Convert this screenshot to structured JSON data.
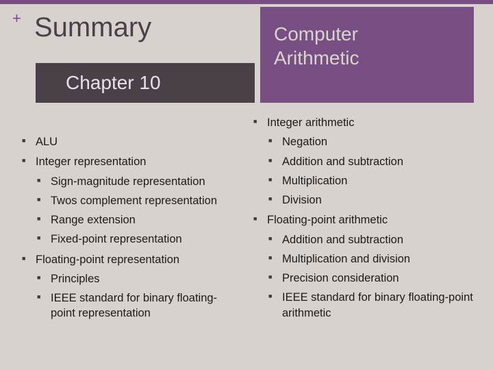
{
  "colors": {
    "band": "#774f82",
    "plus": "#774f82",
    "title": "#4a4048",
    "right_box_bg": "#774f82",
    "right_box_text": "#dcd3cf",
    "chapter_bg": "#4a4048",
    "chapter_text": "#e8e0ec",
    "bullet": "#3a3a3a",
    "body_bg": "#d8d2ce",
    "text": "#1a1a1a"
  },
  "plus_symbol": "+",
  "summary_title": "Summary",
  "right_box_line1": "Computer",
  "right_box_line2": "Arithmetic",
  "chapter_label": "Chapter 10",
  "left": {
    "items": [
      {
        "label": "ALU"
      },
      {
        "label": "Integer representation",
        "children": [
          "Sign-magnitude representation",
          "Twos complement representation",
          "Range extension",
          "Fixed-point representation"
        ]
      },
      {
        "label": "Floating-point representation",
        "children": [
          "Principles",
          "IEEE standard for binary floating-point representation"
        ]
      }
    ]
  },
  "right": {
    "items": [
      {
        "label": "Integer arithmetic",
        "children": [
          "Negation",
          "Addition and subtraction",
          "Multiplication",
          "Division"
        ]
      },
      {
        "label": "Floating-point arithmetic",
        "children": [
          "Addition and subtraction",
          "Multiplication and division",
          "Precision consideration",
          "IEEE standard for binary floating-point arithmetic"
        ]
      }
    ]
  }
}
